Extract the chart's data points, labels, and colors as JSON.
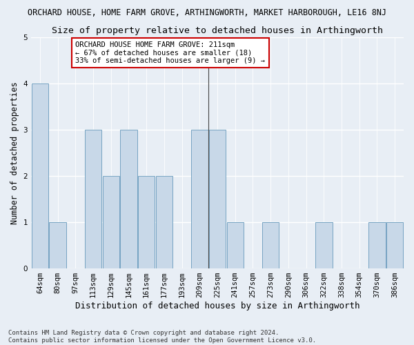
{
  "title": "ORCHARD HOUSE, HOME FARM GROVE, ARTHINGWORTH, MARKET HARBOROUGH, LE16 8NJ",
  "subtitle": "Size of property relative to detached houses in Arthingworth",
  "xlabel": "Distribution of detached houses by size in Arthingworth",
  "ylabel": "Number of detached properties",
  "categories": [
    "64sqm",
    "80sqm",
    "97sqm",
    "113sqm",
    "129sqm",
    "145sqm",
    "161sqm",
    "177sqm",
    "193sqm",
    "209sqm",
    "225sqm",
    "241sqm",
    "257sqm",
    "273sqm",
    "290sqm",
    "306sqm",
    "322sqm",
    "338sqm",
    "354sqm",
    "370sqm",
    "386sqm"
  ],
  "values": [
    4,
    1,
    0,
    3,
    2,
    3,
    2,
    2,
    0,
    3,
    3,
    1,
    0,
    1,
    0,
    0,
    1,
    0,
    0,
    1,
    1
  ],
  "bar_color": "#c8d8e8",
  "bar_edge_color": "#6699bb",
  "ylim": [
    0,
    5
  ],
  "yticks": [
    0,
    1,
    2,
    3,
    4,
    5
  ],
  "vline_x": 9.5,
  "annotation_text": "ORCHARD HOUSE HOME FARM GROVE: 211sqm\n← 67% of detached houses are smaller (18)\n33% of semi-detached houses are larger (9) →",
  "annotation_box_color": "#ffffff",
  "annotation_box_edge_color": "#cc0000",
  "footer_text": "Contains HM Land Registry data © Crown copyright and database right 2024.\nContains public sector information licensed under the Open Government Licence v3.0.",
  "background_color": "#e8eef5",
  "title_fontsize": 8.5,
  "subtitle_fontsize": 9.5,
  "ylabel_fontsize": 8.5,
  "xlabel_fontsize": 9,
  "tick_fontsize": 7.5,
  "annotation_fontsize": 7.5,
  "footer_fontsize": 6.5
}
